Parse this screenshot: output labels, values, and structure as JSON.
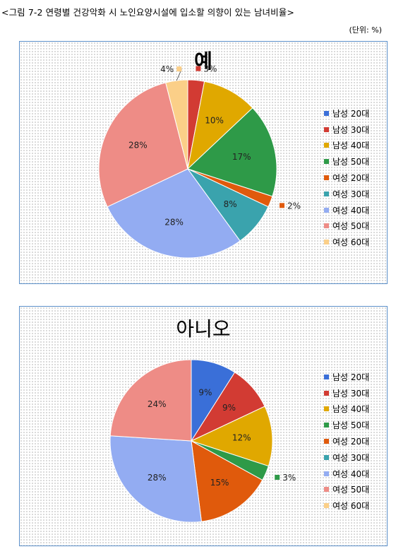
{
  "figure_title": "<그림 7-2 연령별 건강악화 시 노인요양시설에 입소할 의향이 있는 남녀비율>",
  "unit_label": "(단위: %)",
  "chart_data": [
    {
      "type": "pie",
      "title": "예",
      "categories": [
        "남성 20대",
        "남성 30대",
        "남성 40대",
        "남성 50대",
        "여성 20대",
        "여성 30대",
        "여성 40대",
        "여성 50대",
        "여성 60대"
      ],
      "values": [
        0,
        3,
        10,
        17,
        2,
        8,
        28,
        28,
        4
      ],
      "colors": [
        "#3a6fd8",
        "#d23b33",
        "#e0a800",
        "#2e9a48",
        "#e05a0c",
        "#3aa3ad",
        "#93acf2",
        "#ee8c86",
        "#fbcf88"
      ],
      "legend_position": "right",
      "data_labels": [
        "",
        "3%",
        "10%",
        "17%",
        "2%",
        "8%",
        "28%",
        "28%",
        "4%"
      ]
    },
    {
      "type": "pie",
      "title": "아니오",
      "categories": [
        "남성 20대",
        "남성 30대",
        "남성 40대",
        "남성 50대",
        "여성 20대",
        "여성 30대",
        "여성 40대",
        "여성 50대",
        "여성 60대"
      ],
      "values": [
        9,
        9,
        12,
        3,
        15,
        0,
        28,
        24,
        0
      ],
      "colors": [
        "#3a6fd8",
        "#d23b33",
        "#e0a800",
        "#2e9a48",
        "#e05a0c",
        "#3aa3ad",
        "#93acf2",
        "#ee8c86",
        "#fbcf88"
      ],
      "legend_position": "right",
      "data_labels": [
        "9%",
        "9%",
        "12%",
        "3%",
        "15%",
        "",
        "28%",
        "24%",
        ""
      ]
    }
  ]
}
